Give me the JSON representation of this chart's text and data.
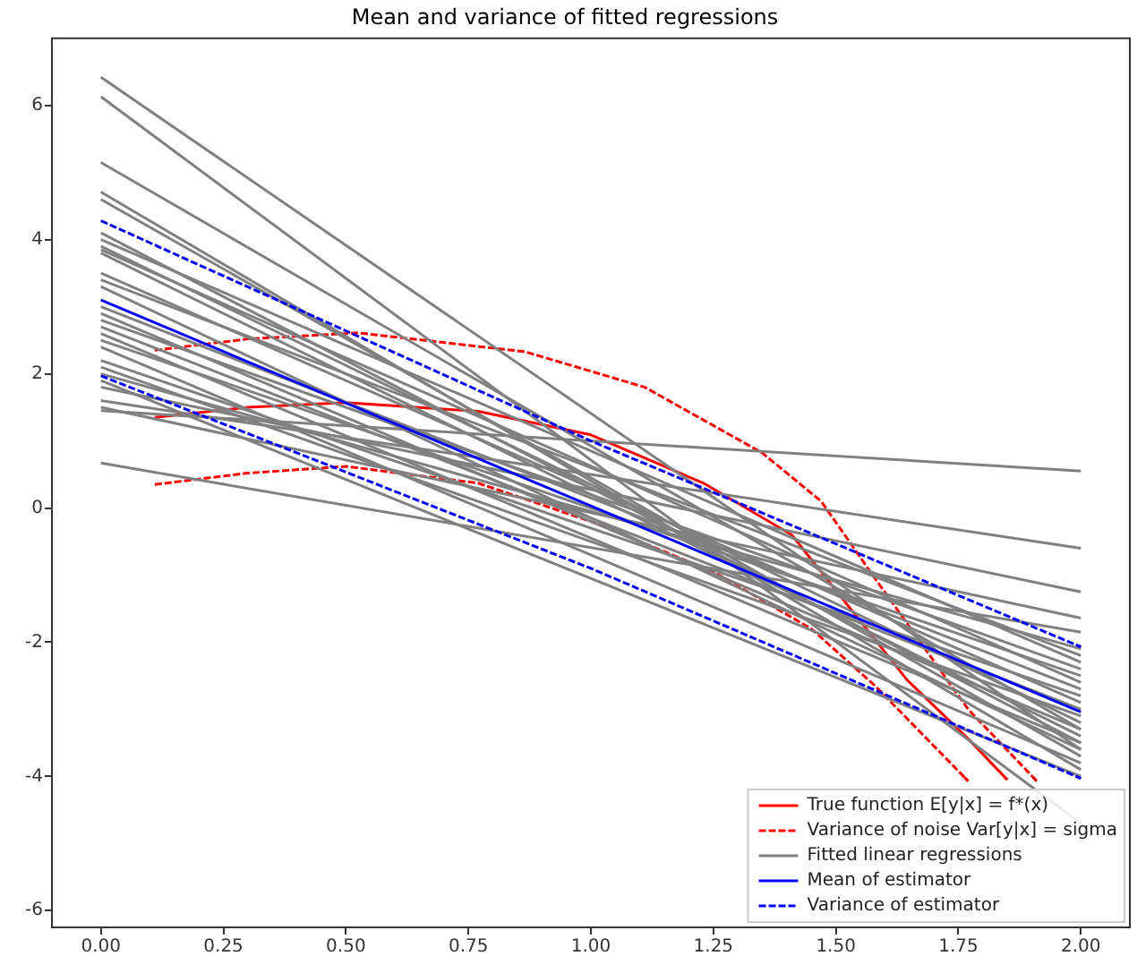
{
  "chart_data": {
    "type": "line",
    "title": "Mean and variance of fitted regressions",
    "legend": "bottom right",
    "xlim": [
      -0.1,
      2.1
    ],
    "ylim": [
      -6.25,
      7
    ],
    "xticks": [
      {
        "value": 0,
        "label": "0.00"
      },
      {
        "value": 0.25,
        "label": "0.25"
      },
      {
        "value": 0.5,
        "label": "0.50"
      },
      {
        "value": 0.75,
        "label": "0.75"
      },
      {
        "value": 1,
        "label": "1.00"
      },
      {
        "value": 1.25,
        "label": "1.25"
      },
      {
        "value": 1.5,
        "label": "1.50"
      },
      {
        "value": 1.75,
        "label": "1.75"
      },
      {
        "value": 2,
        "label": "2.00"
      }
    ],
    "yticks": [
      -6,
      -4,
      -2,
      0,
      2,
      4,
      6
    ],
    "series": [
      {
        "name": "True function E[y|x] = f*(x)",
        "color": "#ff0000",
        "x": [
          0.11,
          0.3,
          0.5,
          0.77,
          1.0,
          1.23,
          1.41,
          1.645,
          1.77,
          1.85
        ],
        "values": [
          1.35,
          1.5,
          1.57,
          1.44,
          1.09,
          0.37,
          -0.4,
          -2.56,
          -3.44,
          -4.05
        ]
      },
      {
        "name": "Variance of noise Var[y|x] = sigma",
        "color": "#ff0000",
        "line_style": "dashed",
        "x": [
          0.11,
          0.3,
          0.525,
          0.865,
          1.11,
          1.35,
          1.47,
          1.58,
          1.77,
          1.91
        ],
        "values": [
          2.35,
          2.52,
          2.61,
          2.33,
          1.8,
          0.82,
          0.1,
          -1.05,
          -3.0,
          -4.07
        ]
      },
      {
        "color": "#ff0000",
        "line_style": "dashed",
        "x": [
          0.11,
          0.3,
          0.5,
          0.77,
          1.0,
          1.25,
          1.45,
          1.58,
          1.77
        ],
        "values": [
          0.35,
          0.52,
          0.62,
          0.37,
          -0.2,
          -0.95,
          -1.8,
          -2.65,
          -4.07
        ]
      },
      {
        "name": "Fitted linear regressions",
        "color": "#808080",
        "x": [
          0,
          2
        ],
        "values": [
          6.42,
          -3.6
        ]
      },
      {
        "color": "#808080",
        "x": [
          0,
          2
        ],
        "values": [
          6.13,
          -4.7
        ]
      },
      {
        "color": "#808080",
        "x": [
          0,
          2
        ],
        "values": [
          5.15,
          -3.3
        ]
      },
      {
        "color": "#808080",
        "x": [
          0,
          2
        ],
        "values": [
          4.71,
          -3.9
        ]
      },
      {
        "color": "#808080",
        "x": [
          0,
          2
        ],
        "values": [
          4.6,
          -3.7
        ]
      },
      {
        "color": "#808080",
        "x": [
          0,
          2
        ],
        "values": [
          4.1,
          -3.5
        ]
      },
      {
        "color": "#808080",
        "x": [
          0,
          2
        ],
        "values": [
          4.0,
          -2.3
        ]
      },
      {
        "color": "#808080",
        "x": [
          0,
          2
        ],
        "values": [
          3.9,
          -3.2
        ]
      },
      {
        "color": "#808080",
        "x": [
          0,
          2
        ],
        "values": [
          3.85,
          -2.6
        ]
      },
      {
        "color": "#808080",
        "x": [
          0,
          2
        ],
        "values": [
          3.8,
          -3.4
        ]
      },
      {
        "color": "#808080",
        "x": [
          0,
          2
        ],
        "values": [
          3.5,
          -2.9
        ]
      },
      {
        "color": "#808080",
        "x": [
          0,
          2
        ],
        "values": [
          3.4,
          -2.2
        ]
      },
      {
        "color": "#808080",
        "x": [
          0,
          2
        ],
        "values": [
          3.3,
          -3.6
        ]
      },
      {
        "color": "#808080",
        "x": [
          0,
          2
        ],
        "values": [
          3.0,
          -2.7
        ]
      },
      {
        "color": "#808080",
        "x": [
          0,
          2
        ],
        "values": [
          2.9,
          -3.3
        ]
      },
      {
        "color": "#808080",
        "x": [
          0,
          2
        ],
        "values": [
          2.8,
          -2.4
        ]
      },
      {
        "color": "#808080",
        "x": [
          0,
          2
        ],
        "values": [
          2.7,
          -3.0
        ]
      },
      {
        "color": "#808080",
        "x": [
          0,
          2
        ],
        "values": [
          2.6,
          -3.5
        ]
      },
      {
        "color": "#808080",
        "x": [
          0,
          2
        ],
        "values": [
          2.5,
          -2.5
        ]
      },
      {
        "color": "#808080",
        "x": [
          0,
          2
        ],
        "values": [
          2.4,
          -3.8
        ]
      },
      {
        "color": "#808080",
        "x": [
          0,
          2
        ],
        "values": [
          2.2,
          -2.8
        ]
      },
      {
        "color": "#808080",
        "x": [
          0,
          2
        ],
        "values": [
          2.1,
          -3.1
        ]
      },
      {
        "color": "#808080",
        "x": [
          0,
          2
        ],
        "values": [
          2.0,
          -2.1
        ]
      },
      {
        "color": "#808080",
        "x": [
          0,
          2
        ],
        "values": [
          1.9,
          -4.0
        ]
      },
      {
        "color": "#808080",
        "x": [
          0,
          2
        ],
        "values": [
          1.8,
          -1.25
        ]
      },
      {
        "color": "#808080",
        "x": [
          0,
          2
        ],
        "values": [
          1.6,
          -0.6
        ]
      },
      {
        "color": "#808080",
        "x": [
          0,
          2
        ],
        "values": [
          1.5,
          -1.64
        ]
      },
      {
        "color": "#808080",
        "x": [
          0,
          2
        ],
        "values": [
          1.45,
          0.55
        ]
      },
      {
        "color": "#808080",
        "x": [
          0,
          2
        ],
        "values": [
          0.67,
          -1.85
        ]
      },
      {
        "name": "Mean of estimator",
        "color": "#0000ff",
        "x": [
          0,
          2
        ],
        "values": [
          3.1,
          -3.04
        ]
      },
      {
        "name": "Variance of estimator",
        "color": "#0000ff",
        "line_style": "dashed",
        "x": [
          0,
          1,
          2
        ],
        "values": [
          4.28,
          1.0,
          -2.07
        ]
      },
      {
        "color": "#0000ff",
        "line_style": "dashed",
        "x": [
          0,
          1,
          2
        ],
        "values": [
          1.97,
          -0.9,
          -4.03
        ]
      }
    ]
  }
}
